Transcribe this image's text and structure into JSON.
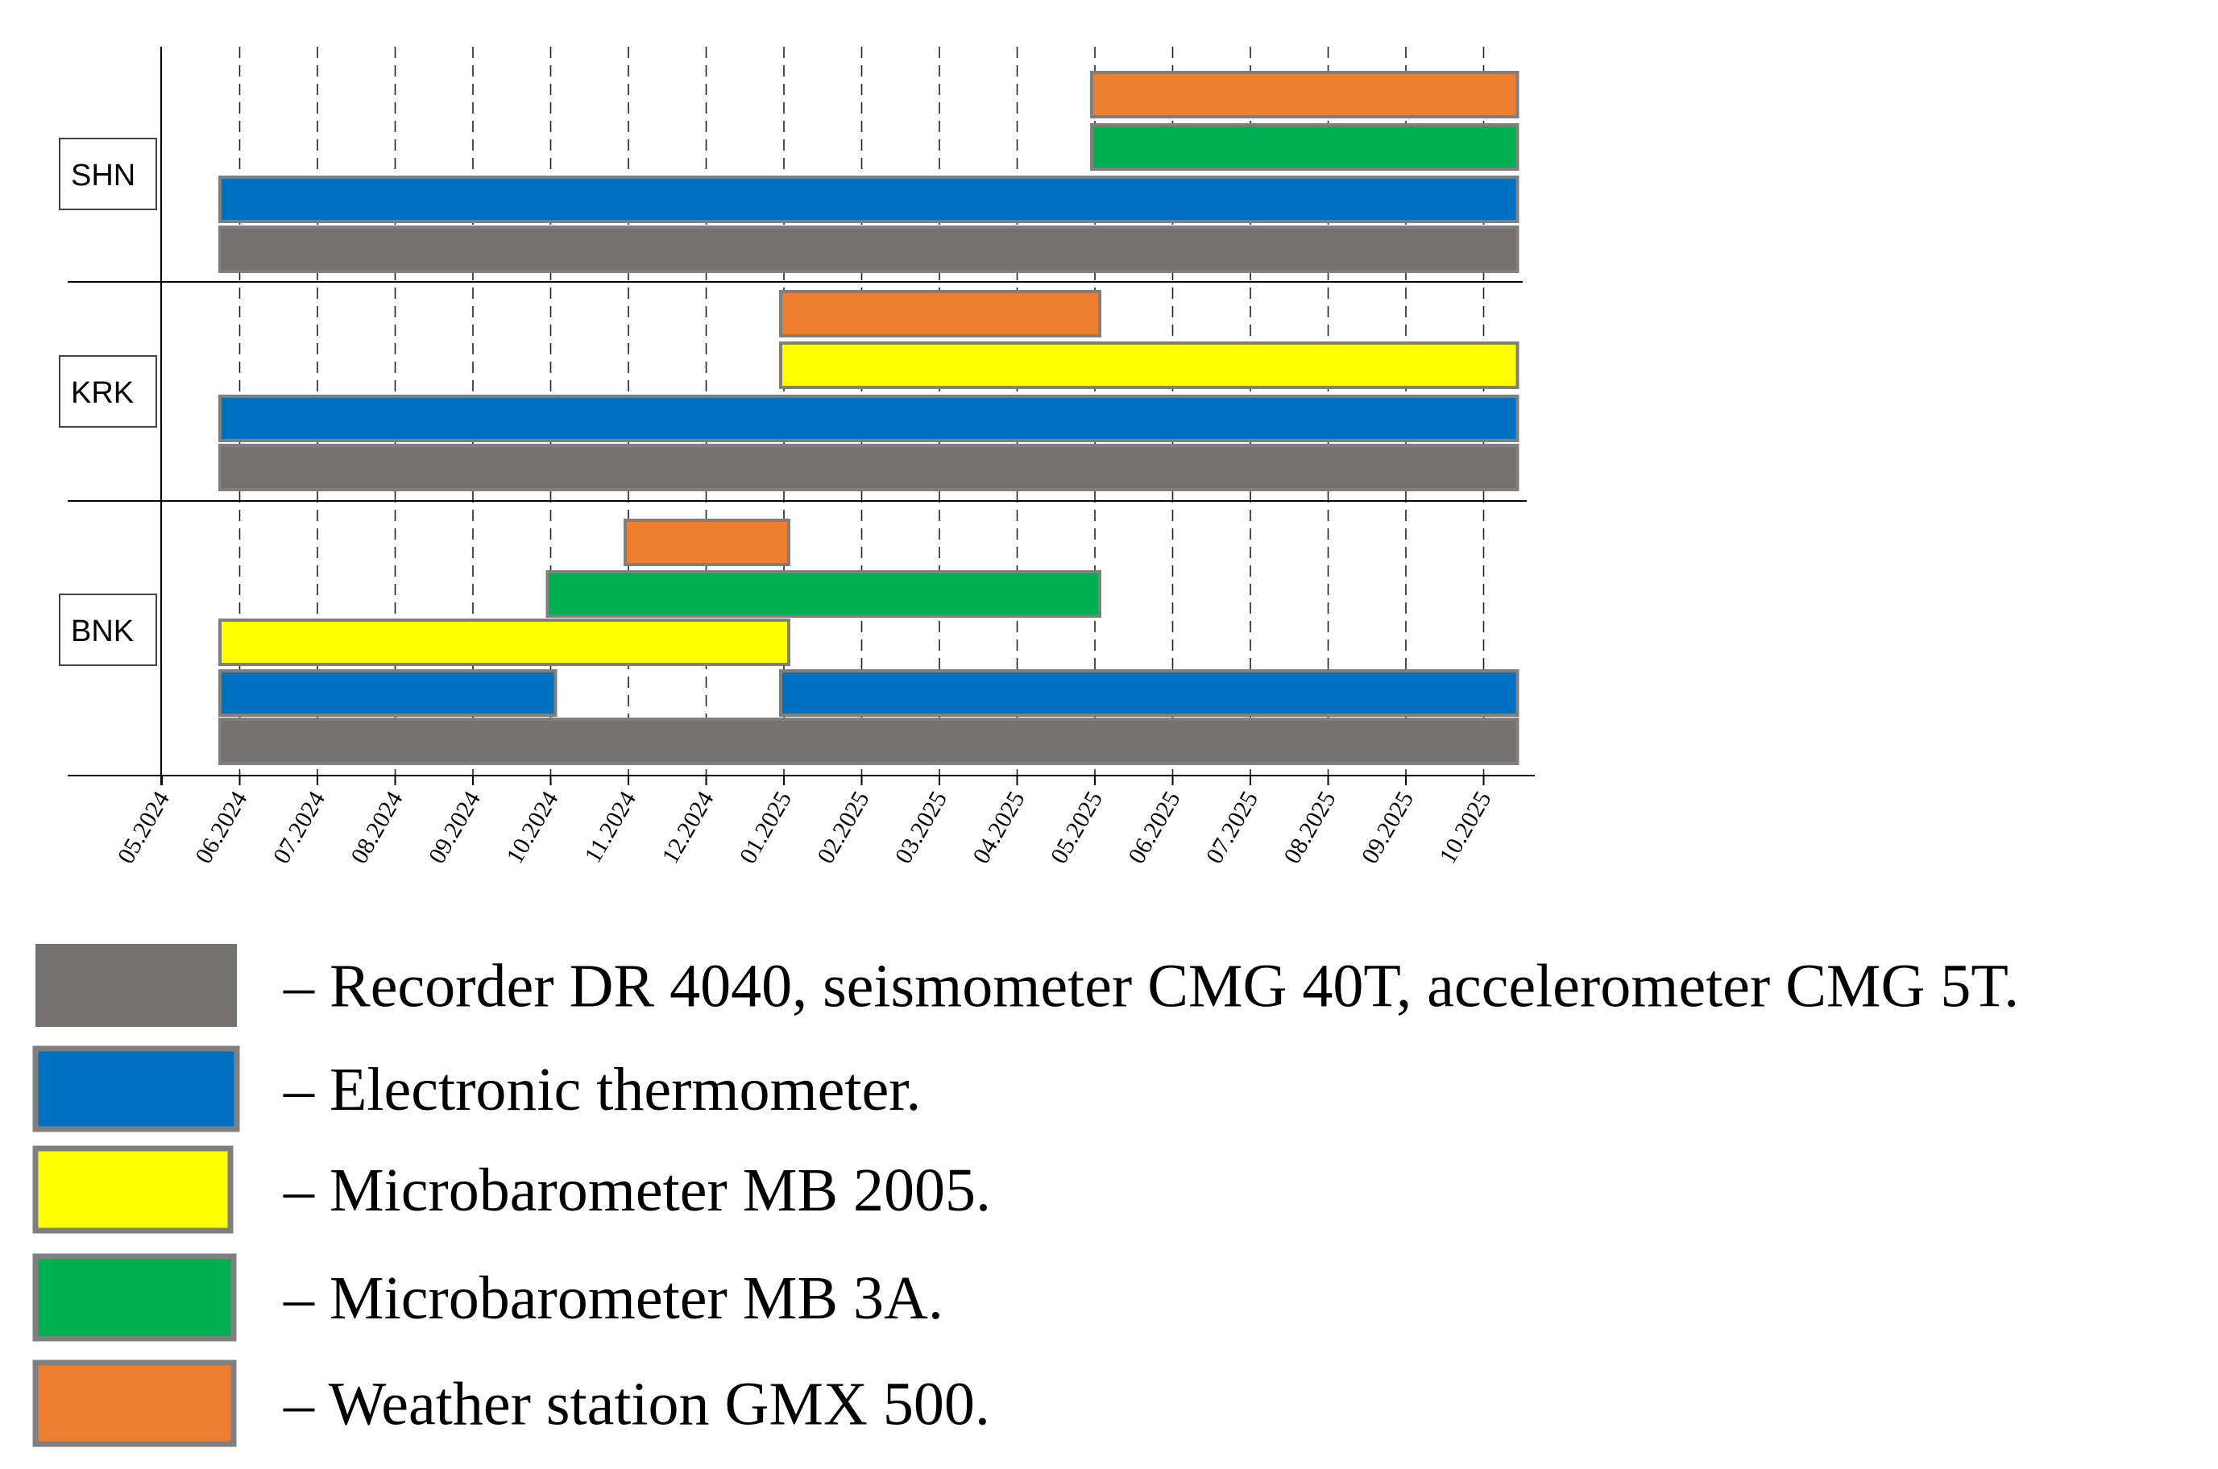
{
  "chart_data": {
    "type": "gantt",
    "title": "",
    "xlabel": "",
    "ylabel": "",
    "x_ticks": [
      "05.2024",
      "06.2024",
      "07.2024",
      "08.2024",
      "09.2024",
      "10.2024",
      "11.2024",
      "12.2024",
      "01.2025",
      "02.2025",
      "03.2025",
      "04.2025",
      "05.2025",
      "06.2025",
      "07.2025",
      "08.2025",
      "09.2025",
      "10.2025"
    ],
    "x_range": [
      "05.2024",
      "10.2025"
    ],
    "grid": "vertical dashed at month ticks",
    "stations": [
      {
        "name": "SHN",
        "bars": [
          {
            "equipment": "Weather station GMX 500.",
            "start": "05.2025",
            "end": "10.2025"
          },
          {
            "equipment": "Microbarometer MB 3A.",
            "start": "05.2025",
            "end": "10.2025"
          },
          {
            "equipment": "Electronic thermometer.",
            "start": "05.2024",
            "end": "10.2025"
          },
          {
            "equipment": "Recorder DR 4040, seismometer CMG 40T, accelerometer CMG 5T.",
            "start": "05.2024",
            "end": "10.2025"
          }
        ]
      },
      {
        "name": "KRK",
        "bars": [
          {
            "equipment": "Weather station GMX 500.",
            "start": "01.2025",
            "end": "05.2025"
          },
          {
            "equipment": "Microbarometer MB 2005.",
            "start": "01.2025",
            "end": "10.2025"
          },
          {
            "equipment": "Electronic thermometer.",
            "start": "05.2024",
            "end": "10.2025"
          },
          {
            "equipment": "Recorder DR 4040, seismometer CMG 40T, accelerometer CMG 5T.",
            "start": "05.2024",
            "end": "10.2025"
          }
        ]
      },
      {
        "name": "BNK",
        "bars": [
          {
            "equipment": "Weather station GMX 500.",
            "start": "11.2024",
            "end": "01.2025"
          },
          {
            "equipment": "Microbarometer MB 3A.",
            "start": "10.2024",
            "end": "05.2025"
          },
          {
            "equipment": "Microbarometer MB 2005.",
            "start": "05.2024",
            "end": "01.2025"
          },
          {
            "equipment": "Electronic thermometer.",
            "start": "05.2024",
            "end": "10.2024"
          },
          {
            "equipment": "Electronic thermometer.",
            "start": "01.2025",
            "end": "10.2025"
          },
          {
            "equipment": "Recorder DR 4040, seismometer CMG 40T, accelerometer CMG 5T.",
            "start": "05.2024",
            "end": "10.2025"
          }
        ]
      }
    ],
    "legend": {
      "placement": "bottom",
      "items": [
        {
          "label": "– Recorder DR 4040, seismometer CMG 40T, accelerometer CMG 5T.",
          "color": "#767171"
        },
        {
          "label": "– Electronic thermometer.",
          "color": "#0070c0"
        },
        {
          "label": "– Microbarometer MB 2005.",
          "color": "#ffff00"
        },
        {
          "label": "– Microbarometer MB 3A.",
          "color": "#00b050"
        },
        {
          "label": "– Weather station GMX 500.",
          "color": "#ed7d31"
        }
      ]
    },
    "colors": {
      "Recorder DR 4040, seismometer CMG 40T, accelerometer CMG 5T.": "#767171",
      "Electronic thermometer.": "#0070c0",
      "Microbarometer MB 2005.": "#ffff00",
      "Microbarometer MB 3A.": "#00b050",
      "Weather station GMX 500.": "#ed7d31",
      "bar_outline": "#7f7f7f"
    }
  }
}
